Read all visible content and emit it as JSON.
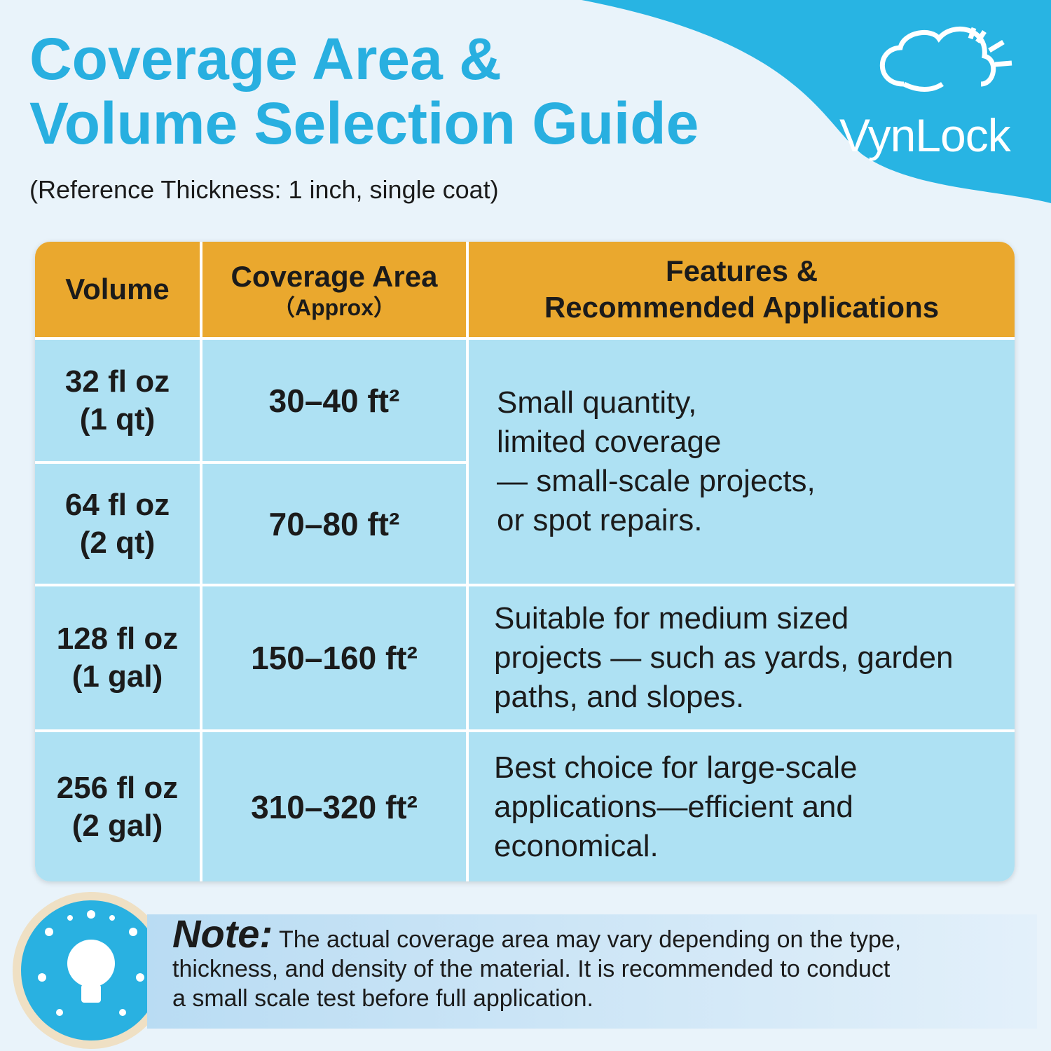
{
  "header": {
    "title_lines": [
      "Coverage Area &",
      "Volume Selection Guide"
    ],
    "subtitle": "(Reference Thickness: 1 inch, single coat)",
    "brand": "VynLock"
  },
  "table": {
    "columns": [
      {
        "lines": [
          "Volume"
        ]
      },
      {
        "lines": [
          "Coverage Area"
        ],
        "sub": "（Approx）"
      },
      {
        "lines": [
          "Features &",
          "Recommended Applications"
        ]
      }
    ],
    "rows": [
      {
        "volume": [
          "32 fl oz",
          "(1 qt)"
        ],
        "coverage": "30–40 ft²"
      },
      {
        "volume": [
          "64 fl oz",
          "(2 qt)"
        ],
        "coverage": "70–80 ft²"
      },
      {
        "volume": [
          "128 fl oz",
          "(1 gal)"
        ],
        "coverage": "150–160 ft²"
      },
      {
        "volume": [
          "256 fl oz",
          "(2 gal)"
        ],
        "coverage": "310–320 ft²"
      }
    ],
    "features": [
      {
        "lines": [
          "Small quantity,",
          "limited coverage",
          "— small-scale projects,",
          "or spot repairs."
        ]
      },
      {
        "lines": [
          "Suitable for medium sized",
          "projects — such as yards, garden",
          "paths, and slopes."
        ]
      },
      {
        "lines": [
          "Best choice for large-scale",
          "applications—efficient and",
          "economical."
        ]
      }
    ]
  },
  "note": {
    "label": "Note:",
    "lines": [
      "The actual coverage area may vary depending on the type,",
      "thickness, and density of the material. It is recommended to conduct",
      "a small scale test before full application."
    ]
  }
}
